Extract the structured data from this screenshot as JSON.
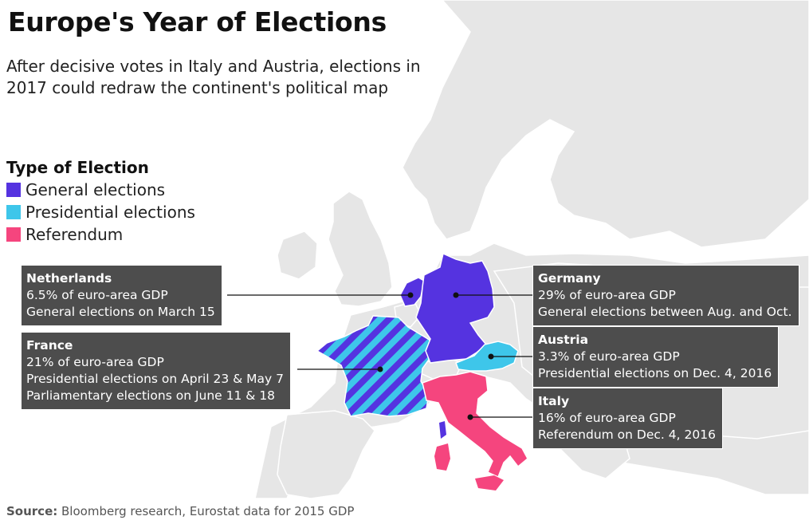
{
  "title": "Europe's Year of Elections",
  "subtitle": "After decisive votes in Italy and Austria, elections in 2017 could redraw the continent's political map",
  "legend": {
    "title": "Type of Election",
    "items": [
      {
        "label": "General elections",
        "color": "#5533e0"
      },
      {
        "label": "Presidential elections",
        "color": "#3ec6ea"
      },
      {
        "label": "Referendum",
        "color": "#f5457e"
      }
    ]
  },
  "colors": {
    "land": "#e6e6e6",
    "callout_bg": "#4d4d4d"
  },
  "callouts": {
    "netherlands": {
      "name": "Netherlands",
      "gdp": "6.5% of euro-area GDP",
      "line1": "General elections on March 15"
    },
    "france": {
      "name": "France",
      "gdp": "21% of euro-area GDP",
      "line1": "Presidential elections on April 23 & May 7",
      "line2": "Parliamentary elections on June 11 & 18"
    },
    "germany": {
      "name": "Germany",
      "gdp": "29% of euro-area GDP",
      "line1": "General elections between Aug. and Oct."
    },
    "austria": {
      "name": "Austria",
      "gdp": "3.3% of euro-area GDP",
      "line1": "Presidential elections on Dec. 4, 2016"
    },
    "italy": {
      "name": "Italy",
      "gdp": "16% of euro-area GDP",
      "line1": "Referendum on Dec. 4, 2016"
    }
  },
  "source": {
    "label": "Source:",
    "text": " Bloomberg research, Eurostat data for 2015 GDP"
  }
}
